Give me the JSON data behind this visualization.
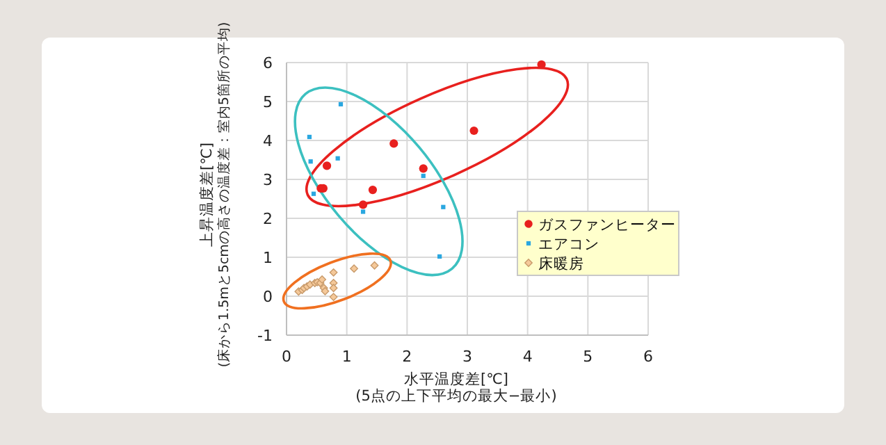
{
  "chart_data": {
    "type": "scatter",
    "xlabel": "水平温度差[℃]\n(5点の上下平均の最大−最小)",
    "ylabel": "上昇温度差[℃]\n(床から1.5mと5cmの高さの温度差：室内5箇所の平均)",
    "xlim": [
      0,
      6
    ],
    "xticks": [
      0,
      1,
      2,
      3,
      4,
      5,
      6
    ],
    "ylim": [
      -1,
      6
    ],
    "yticks": [
      -1,
      0,
      1,
      2,
      3,
      4,
      5,
      6
    ],
    "grid": true,
    "legend": "right",
    "series": [
      {
        "name": "ガスファンヒーター",
        "color": "#e8201e",
        "marker": "circle",
        "x": [
          4.23,
          3.11,
          1.78,
          2.27,
          0.67,
          0.57,
          0.61,
          1.43,
          1.27
        ],
        "values": [
          5.95,
          4.25,
          3.92,
          3.28,
          3.35,
          2.77,
          2.77,
          2.73,
          2.35
        ]
      },
      {
        "name": "エアコン",
        "color": "#2aa7e0",
        "marker": "square",
        "x": [
          0.38,
          0.9,
          0.4,
          0.85,
          0.45,
          1.27,
          2.27,
          2.6,
          2.54
        ],
        "values": [
          4.09,
          4.93,
          3.46,
          3.54,
          2.63,
          2.17,
          3.09,
          2.29,
          1.02
        ]
      },
      {
        "name": "床暖房",
        "color": "#f5c99a",
        "marker": "diamond",
        "x": [
          0.2,
          0.26,
          0.29,
          0.34,
          0.39,
          0.47,
          0.51,
          0.56,
          0.59,
          0.62,
          0.64,
          0.78,
          0.78,
          0.78,
          0.78,
          1.12,
          1.46
        ],
        "values": [
          0.12,
          0.16,
          0.21,
          0.25,
          0.3,
          0.34,
          0.36,
          0.34,
          0.43,
          0.21,
          0.13,
          0.61,
          0.34,
          0.21,
          -0.02,
          0.71,
          0.79
        ]
      }
    ]
  }
}
